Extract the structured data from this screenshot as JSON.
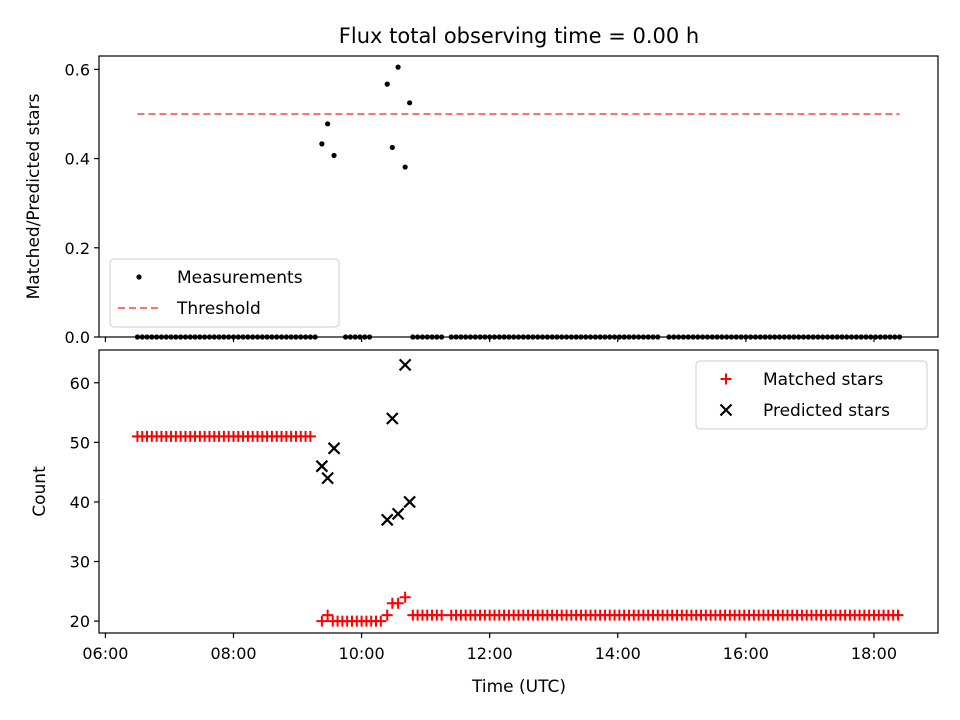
{
  "chart_data": {
    "type": "scatter",
    "title": "Flux total observing time = 0.00 h",
    "xlabel": "Time (UTC)",
    "x_ticks": [
      "06:00",
      "08:00",
      "10:00",
      "12:00",
      "14:00",
      "16:00",
      "18:00"
    ],
    "x_tick_values": [
      6,
      8,
      10,
      12,
      14,
      16,
      18
    ],
    "xlim": [
      5.9,
      19.0
    ],
    "panels": [
      {
        "ylabel": "Matched/Predicted stars",
        "ylim": [
          0,
          0.63
        ],
        "y_ticks": [
          0.0,
          0.2,
          0.4,
          0.6
        ],
        "y_tick_labels": [
          "0.0",
          "0.2",
          "0.4",
          "0.6"
        ],
        "legend": "lower-left",
        "threshold": {
          "name": "Threshold",
          "value": 0.5,
          "x_start": 6.5,
          "x_end": 18.4,
          "color": "#ff7070"
        },
        "series": [
          {
            "name": "Measurements",
            "marker": "dot",
            "color": "#000000",
            "zero_runs": [
              [
                6.5,
                9.32
              ],
              [
                9.75,
                10.15
              ],
              [
                10.8,
                11.25
              ],
              [
                11.4,
                14.65
              ],
              [
                14.8,
                18.4
              ]
            ],
            "points": [
              [
                9.38,
                0.433
              ],
              [
                9.47,
                0.478
              ],
              [
                9.57,
                0.407
              ],
              [
                10.4,
                0.567
              ],
              [
                10.48,
                0.425
              ],
              [
                10.57,
                0.605
              ],
              [
                10.68,
                0.381
              ],
              [
                10.75,
                0.525
              ]
            ]
          }
        ]
      },
      {
        "ylabel": "Count",
        "ylim": [
          18,
          65.5
        ],
        "y_ticks": [
          20,
          30,
          40,
          50,
          60
        ],
        "y_tick_labels": [
          "20",
          "30",
          "40",
          "50",
          "60"
        ],
        "legend": "upper-right",
        "series": [
          {
            "name": "Matched stars",
            "marker": "plus",
            "color": "#ff0000",
            "runs": [
              {
                "from": 6.5,
                "to": 9.25,
                "value": 51
              },
              {
                "from": 9.55,
                "to": 10.3,
                "value": 20
              },
              {
                "from": 10.8,
                "to": 11.25,
                "value": 21
              },
              {
                "from": 11.4,
                "to": 18.4,
                "value": 21
              }
            ],
            "points": [
              [
                9.38,
                20
              ],
              [
                9.47,
                21
              ],
              [
                10.4,
                21
              ],
              [
                10.48,
                23
              ],
              [
                10.57,
                23
              ],
              [
                10.68,
                24
              ]
            ]
          },
          {
            "name": "Predicted stars",
            "marker": "x",
            "color": "#000000",
            "points": [
              [
                9.38,
                46
              ],
              [
                9.47,
                44
              ],
              [
                9.57,
                49
              ],
              [
                10.4,
                37
              ],
              [
                10.48,
                54
              ],
              [
                10.57,
                38
              ],
              [
                10.68,
                63
              ],
              [
                10.75,
                40
              ]
            ]
          }
        ]
      }
    ]
  }
}
